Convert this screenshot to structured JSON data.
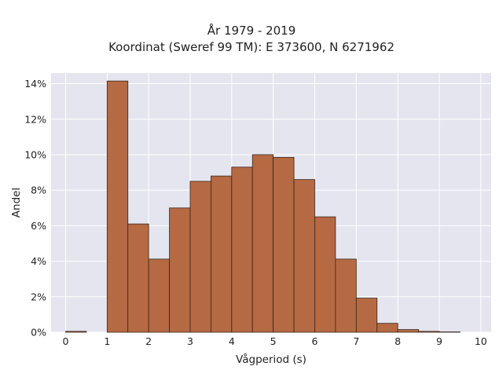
{
  "chart_data": {
    "type": "bar",
    "title_lines": [
      "År 1979 - 2019",
      "Koordinat (Sweref 99 TM): E 373600, N 6271962"
    ],
    "xlabel": "Vågperiod (s)",
    "ylabel": "Andel",
    "bin_edges": [
      0,
      0.5,
      1,
      1.5,
      2,
      2.5,
      3,
      3.5,
      4,
      4.5,
      5,
      5.5,
      6,
      6.5,
      7,
      7.5,
      8,
      8.5,
      9,
      9.5
    ],
    "values": [
      0.05,
      0,
      14.15,
      6.1,
      4.12,
      7.0,
      8.5,
      8.8,
      9.3,
      10.0,
      9.85,
      8.6,
      6.5,
      4.12,
      1.92,
      0.5,
      0.15,
      0.05,
      0.02
    ],
    "bin_width": 0.5,
    "xlim": [
      -0.35,
      10.25
    ],
    "ylim": [
      0,
      14.6
    ],
    "x_ticks": [
      0,
      1,
      2,
      3,
      4,
      5,
      6,
      7,
      8,
      9,
      10
    ],
    "y_ticks": [
      0,
      2,
      4,
      6,
      8,
      10,
      12,
      14
    ],
    "y_tick_labels": [
      "0%",
      "2%",
      "4%",
      "6%",
      "8%",
      "10%",
      "12%",
      "14%"
    ],
    "grid": true,
    "colors": {
      "bar_fill": "#b56a43",
      "bar_stroke": "#3a2418",
      "plot_bg": "#e5e5ef",
      "grid": "#ffffff"
    }
  }
}
